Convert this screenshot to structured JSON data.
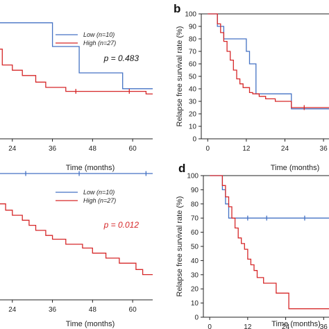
{
  "colors": {
    "low": "#4472c4",
    "high": "#d62728",
    "axis": "#222222",
    "frame": "#333333"
  },
  "chart_data": [
    {
      "id": "a",
      "type": "line",
      "panel_label": "",
      "xlabel": "Time (months)",
      "ylabel": "",
      "xlim": [
        12,
        66
      ],
      "ylim": [
        0,
        100
      ],
      "xticks": [
        "24",
        "36",
        "48",
        "60"
      ],
      "yticks": [],
      "legend": {
        "placement": "top-right",
        "entries": [
          "Low (n=10)",
          "High (n=27)"
        ]
      },
      "p_value": "p = 0.483",
      "p_color": "#111111",
      "series": [
        {
          "name": "Low (n=10)",
          "color": "#4472c4",
          "x": [
            12,
            36,
            36,
            44,
            44,
            57,
            57,
            66
          ],
          "y": [
            88,
            88,
            70,
            70,
            50,
            50,
            38,
            38
          ],
          "censor": []
        },
        {
          "name": "High (n=27)",
          "color": "#d62728",
          "x": [
            12,
            17,
            17,
            21,
            21,
            24,
            24,
            27,
            27,
            31,
            31,
            34,
            34,
            40,
            40,
            64,
            64,
            66
          ],
          "y": [
            73,
            73,
            68,
            68,
            56,
            56,
            52,
            52,
            48,
            48,
            43,
            43,
            39,
            39,
            36,
            36,
            34,
            34
          ],
          "censor": [
            [
              43,
              36
            ],
            [
              59,
              36
            ]
          ]
        }
      ]
    },
    {
      "id": "b",
      "type": "line",
      "panel_label": "b",
      "xlabel": "Time (months)",
      "ylabel": "Relapse free survival rate (%)",
      "xlim": [
        -2,
        39
      ],
      "ylim": [
        0,
        100
      ],
      "xticks": [
        "0",
        "12",
        "24",
        "36"
      ],
      "yticks": [
        "0",
        "10",
        "20",
        "30",
        "40",
        "50",
        "60",
        "70",
        "80",
        "90",
        "100"
      ],
      "legend": null,
      "p_value": "",
      "p_color": "#111111",
      "series": [
        {
          "name": "Low (n=10)",
          "color": "#4472c4",
          "x": [
            0,
            3,
            3,
            5,
            5,
            12,
            12,
            13,
            13,
            15,
            15,
            26,
            26,
            39
          ],
          "y": [
            100,
            100,
            90,
            90,
            80,
            80,
            70,
            70,
            60,
            60,
            36,
            36,
            24,
            24
          ],
          "censor": []
        },
        {
          "name": "High (n=27)",
          "color": "#d62728",
          "x": [
            0,
            3,
            3,
            4,
            4,
            5,
            5,
            6,
            6,
            7,
            7,
            8,
            8,
            9,
            9,
            10,
            10,
            11,
            11,
            13,
            13,
            14,
            14,
            16,
            16,
            18,
            18,
            21,
            21,
            26,
            26,
            39
          ],
          "y": [
            100,
            100,
            92,
            92,
            85,
            85,
            78,
            78,
            70,
            70,
            63,
            63,
            55,
            55,
            48,
            48,
            44,
            44,
            41,
            41,
            37,
            37,
            36,
            36,
            34,
            34,
            32,
            32,
            30,
            30,
            25,
            25
          ],
          "censor": [
            [
              30,
              25
            ]
          ]
        }
      ]
    },
    {
      "id": "c",
      "type": "line",
      "panel_label": "",
      "xlabel": "Time (months)",
      "ylabel": "",
      "xlim": [
        12,
        66
      ],
      "ylim": [
        0,
        100
      ],
      "xticks": [
        "24",
        "36",
        "48",
        "60"
      ],
      "yticks": [],
      "legend": {
        "placement": "top-right",
        "entries": [
          "Low (n=10)",
          "High (n=27)"
        ]
      },
      "p_value": "p = 0.012",
      "p_color": "#d62728",
      "series": [
        {
          "name": "Low (n=10)",
          "color": "#4472c4",
          "x": [
            12,
            66
          ],
          "y": [
            100,
            100
          ],
          "censor": [
            [
              28,
              100
            ],
            [
              44,
              100
            ],
            [
              64,
              100
            ]
          ]
        },
        {
          "name": "High (n=27)",
          "color": "#d62728",
          "x": [
            12,
            14,
            14,
            17,
            17,
            19,
            19,
            22,
            22,
            24,
            24,
            27,
            27,
            29,
            29,
            31,
            31,
            34,
            34,
            36,
            36,
            40,
            40,
            45,
            45,
            48,
            48,
            52,
            52,
            56,
            56,
            61,
            61,
            63,
            63,
            66
          ],
          "y": [
            88,
            88,
            84,
            84,
            80,
            80,
            76,
            76,
            71,
            71,
            67,
            67,
            63,
            63,
            59,
            59,
            55,
            55,
            51,
            51,
            48,
            48,
            44,
            44,
            41,
            41,
            37,
            37,
            33,
            33,
            29,
            29,
            24,
            24,
            20,
            20
          ],
          "censor": []
        }
      ]
    },
    {
      "id": "d",
      "type": "line",
      "panel_label": "d",
      "xlabel": "Time (months)",
      "ylabel": "Relapse free survival rate (%)",
      "xlim": [
        -2,
        39
      ],
      "ylim": [
        0,
        100
      ],
      "xticks": [
        "0",
        "12",
        "24",
        "36"
      ],
      "yticks": [
        "0",
        "10",
        "20",
        "30",
        "40",
        "50",
        "60",
        "70",
        "80",
        "90",
        "100"
      ],
      "legend": null,
      "p_value": "",
      "p_color": "#111111",
      "series": [
        {
          "name": "Low (n=10)",
          "color": "#4472c4",
          "x": [
            0,
            4,
            4,
            5,
            5,
            6,
            6,
            39
          ],
          "y": [
            100,
            100,
            90,
            90,
            80,
            80,
            70,
            70
          ],
          "censor": [
            [
              12,
              70
            ],
            [
              18,
              70
            ],
            [
              30,
              70
            ]
          ]
        },
        {
          "name": "High (n=27)",
          "color": "#d62728",
          "x": [
            0,
            4,
            4,
            5,
            5,
            6,
            6,
            7,
            7,
            8,
            8,
            9,
            9,
            10,
            10,
            11,
            11,
            12,
            12,
            13,
            13,
            14,
            14,
            15,
            15,
            17,
            17,
            21,
            21,
            25,
            25,
            39
          ],
          "y": [
            100,
            100,
            93,
            93,
            85,
            85,
            78,
            78,
            70,
            70,
            63,
            63,
            56,
            56,
            52,
            52,
            48,
            48,
            41,
            41,
            37,
            37,
            33,
            33,
            28,
            28,
            24,
            24,
            17,
            17,
            6,
            6
          ],
          "censor": []
        }
      ]
    }
  ]
}
